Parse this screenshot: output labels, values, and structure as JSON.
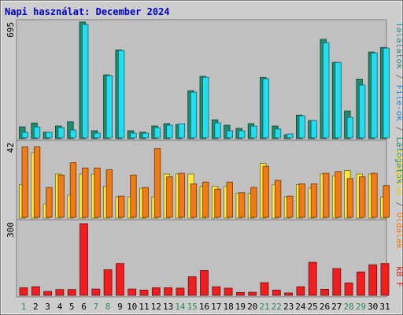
{
  "chart_data": [
    {
      "type": "bar",
      "title": "Napi használat: December 2024",
      "categories": [
        "1",
        "2",
        "3",
        "4",
        "5",
        "6",
        "7",
        "8",
        "9",
        "10",
        "11",
        "12",
        "13",
        "14",
        "15",
        "16",
        "17",
        "18",
        "19",
        "20",
        "21",
        "22",
        "23",
        "24",
        "25",
        "26",
        "27",
        "28",
        "29",
        "30",
        "31"
      ],
      "weekend_days": [
        "1",
        "7",
        "8",
        "14",
        "15",
        "21",
        "22",
        "28",
        "29"
      ],
      "ymax_label": "695",
      "ylim": [
        0,
        695
      ],
      "series": [
        {
          "name": "Látogatók",
          "values": [
            70,
            93,
            38,
            75,
            100,
            695,
            47,
            380,
            529,
            47,
            38,
            75,
            89,
            84,
            286,
            371,
            112,
            80,
            61,
            89,
            365,
            75,
            23,
            140,
            108,
            592,
            455,
            164,
            355,
            516,
            544
          ]
        },
        {
          "name": "File-ok",
          "values": [
            33,
            65,
            33,
            61,
            47,
            676,
            28,
            371,
            521,
            28,
            28,
            61,
            75,
            84,
            272,
            361,
            89,
            42,
            42,
            70,
            352,
            52,
            23,
            131,
            103,
            567,
            450,
            122,
            314,
            506,
            535
          ]
        }
      ],
      "axis_label_parts": [
        "Látogatók",
        " / ",
        "File-ok",
        " / ",
        "Találatok"
      ],
      "colors": {
        "visitors": "#1e8c6e",
        "files": "#22dcf0",
        "slash": "#6e6e6e",
        "hits": "#3c8c8c"
      }
    },
    {
      "type": "bar",
      "ymax_label": "42",
      "ylim": [
        0,
        42
      ],
      "series": [
        {
          "name": "Látogatás",
          "values": [
            19,
            37,
            8,
            25,
            13,
            25,
            25,
            18,
            12,
            12,
            17,
            12,
            25,
            25,
            25,
            18,
            18,
            18,
            14,
            14,
            31,
            19,
            12,
            19,
            17,
            25,
            24,
            27,
            25,
            25,
            12
          ]
        },
        {
          "name": "Oldalak",
          "values": [
            40,
            40,
            17,
            24,
            31,
            28,
            28,
            27,
            12,
            24,
            17,
            39,
            23,
            25,
            19,
            20,
            16,
            20,
            14,
            17,
            29,
            21,
            12,
            19,
            19,
            25,
            26,
            22,
            23,
            25,
            18
          ]
        }
      ],
      "axis_label_parts": [
        "Oldalak",
        " / ",
        "Látogatás"
      ],
      "colors": {
        "pages": "#f07a14",
        "visits": "#ffe93c",
        "slash": "#6e6e6e"
      }
    },
    {
      "type": "bar",
      "ymax_label": "300",
      "ylim": [
        0,
        300
      ],
      "series": [
        {
          "name": "kB F",
          "values": [
            32,
            36,
            16,
            24,
            24,
            300,
            26,
            107,
            133,
            26,
            22,
            32,
            32,
            30,
            78,
            104,
            36,
            30,
            12,
            13,
            53,
            22,
            10,
            36,
            138,
            25,
            112,
            52,
            98,
            128,
            133
          ]
        }
      ],
      "axis_label_parts": [
        "kB F"
      ],
      "colors": {
        "kbytes": "#f01e1e"
      }
    }
  ]
}
